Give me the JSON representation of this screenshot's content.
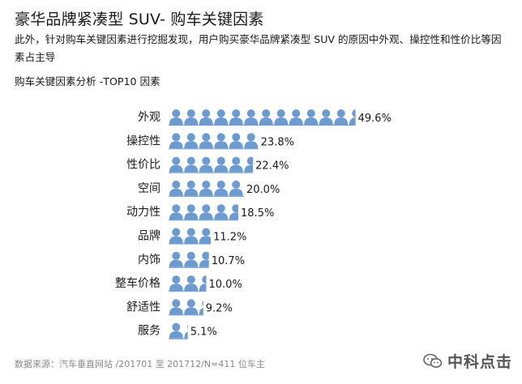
{
  "header": {
    "title": "豪华品牌紧凑型 SUV- 购车关键因素",
    "description": "此外，针对购车关键因素进行挖掘发现，用户购买豪华品牌紧凑型 SUV 的原因中外观、操控性和性价比等因素占主导",
    "subtitle": "购车关键因素分析 -TOP10 因素"
  },
  "footer": {
    "source": "数据来源：汽车垂直网站 /201701 至 201712/N=411 位车主",
    "logo_text": "中科点击",
    "logo_icon": "wechat-icon"
  },
  "colors": {
    "icon": "#6c9bd2",
    "baseline": "#6c9bd2",
    "text": "#1a1a1a"
  },
  "chart_data": {
    "type": "bar",
    "orientation": "horizontal",
    "mark": "person-icon pictograph",
    "categories": [
      "外观",
      "操控性",
      "性价比",
      "空间",
      "动力性",
      "品牌",
      "内饰",
      "整车价格",
      "舒适性",
      "服务"
    ],
    "values": [
      49.6,
      23.8,
      22.4,
      20.0,
      18.5,
      11.2,
      10.7,
      10.0,
      9.2,
      5.1
    ],
    "value_labels": [
      "49.6%",
      "23.8%",
      "22.4%",
      "20.0%",
      "18.5%",
      "11.2%",
      "10.7%",
      "10.0%",
      "9.2%",
      "5.1%"
    ],
    "unit": "%"
  }
}
